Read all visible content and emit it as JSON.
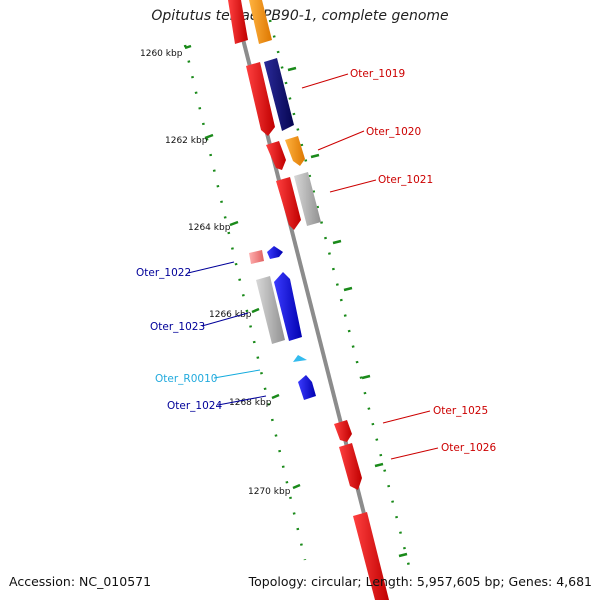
{
  "title": "Opitutus terrae PB90-1, complete genome",
  "footer": {
    "accession": "Accession: NC_010571",
    "summary": "Topology: circular; Length: 5,957,605 bp; Genes: 4,681"
  },
  "ticks": [
    "1260 kbp",
    "1262 kbp",
    "1264 kbp",
    "1266 kbp",
    "1268 kbp",
    "1270 kbp"
  ],
  "genes": [
    "Oter_1019",
    "Oter_1020",
    "Oter_1021",
    "Oter_1022",
    "Oter_1023",
    "Oter_R0010",
    "Oter_1024",
    "Oter_1025",
    "Oter_1026"
  ],
  "colors": {
    "red": "#ee1111",
    "orange": "#ff9900",
    "navy": "#0a0a70",
    "blue": "#0000ee",
    "gray": "#b0b0b0",
    "pink": "#f08080",
    "cyan": "#33bbee",
    "tick": "#1a8a1a",
    "backbone": "#8c8c8c"
  }
}
